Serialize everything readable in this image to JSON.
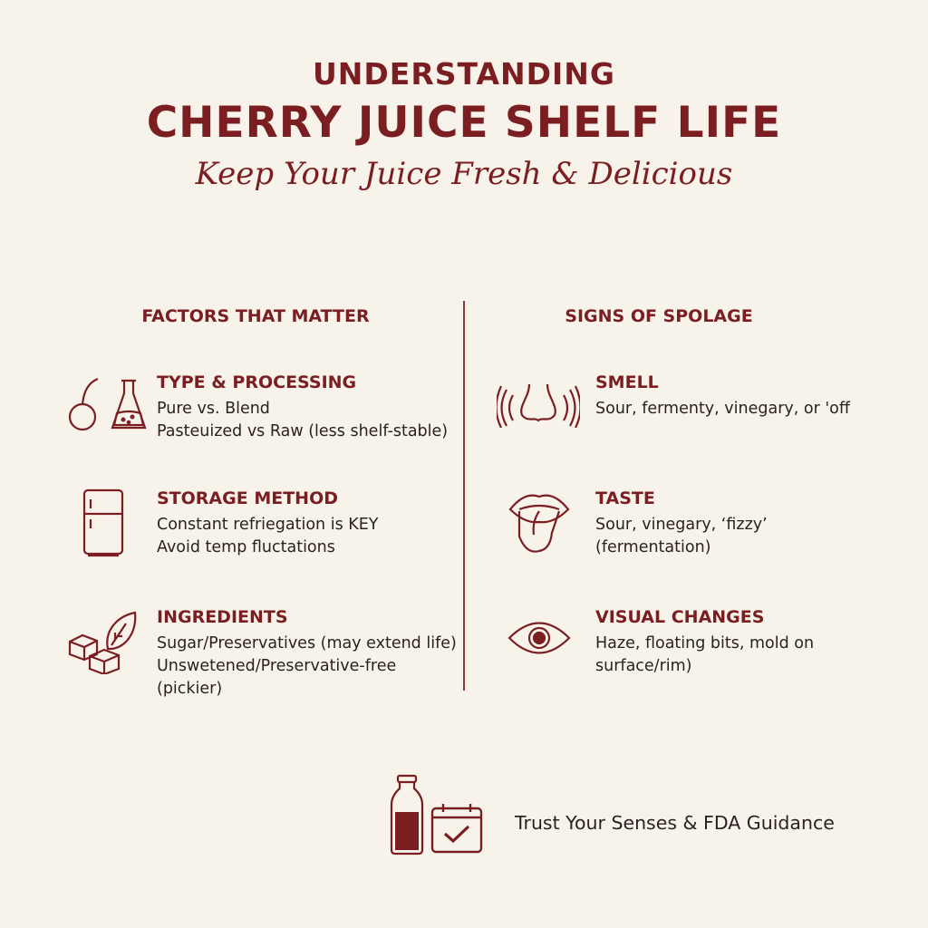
{
  "header": {
    "line1": "UNDERSTANDING",
    "line2": "CHERRY JUICE SHELF LIFE",
    "subtitle": "Keep Your Juice Fresh & Delicious"
  },
  "colors": {
    "accent": "#7a1e22",
    "background": "#f8f3ea",
    "text": "#2a2222"
  },
  "factors": {
    "heading": "FACTORS THAT MATTER",
    "items": [
      {
        "title": "TYPE & PROCESSING",
        "icon": "cherry-flask-icon",
        "lines": [
          "Pure vs. Blend",
          "Pasteuized vs Raw (less shelf-stable)"
        ]
      },
      {
        "title": "STORAGE METHOD",
        "icon": "fridge-icon",
        "lines": [
          "Constant refriegation is KEY",
          "Avoid temp fluctations"
        ]
      },
      {
        "title": "INGREDIENTS",
        "icon": "sugar-cubes-leaf-icon",
        "lines": [
          "Sugar/Preservatives (may extend life)",
          "Unswetened/Preservative-free",
          "(pickier)"
        ]
      }
    ]
  },
  "signs": {
    "heading": "SIGNS OF SPOLAGE",
    "items": [
      {
        "title": "SMELL",
        "icon": "nose-icon",
        "lines": [
          "Sour, fermenty, vinegary, or 'off"
        ]
      },
      {
        "title": "TASTE",
        "icon": "tongue-icon",
        "lines": [
          "Sour, vinegary, ‘fizzy’",
          "(fermentation)"
        ]
      },
      {
        "title": "VISUAL CHANGES",
        "icon": "eye-icon",
        "lines": [
          "Haze, floating bits, mold on",
          "surface/rim)"
        ]
      }
    ]
  },
  "footer": {
    "text": "Trust Your Senses & FDA Guidance",
    "icons": [
      "bottle-icon",
      "calendar-check-icon"
    ]
  }
}
